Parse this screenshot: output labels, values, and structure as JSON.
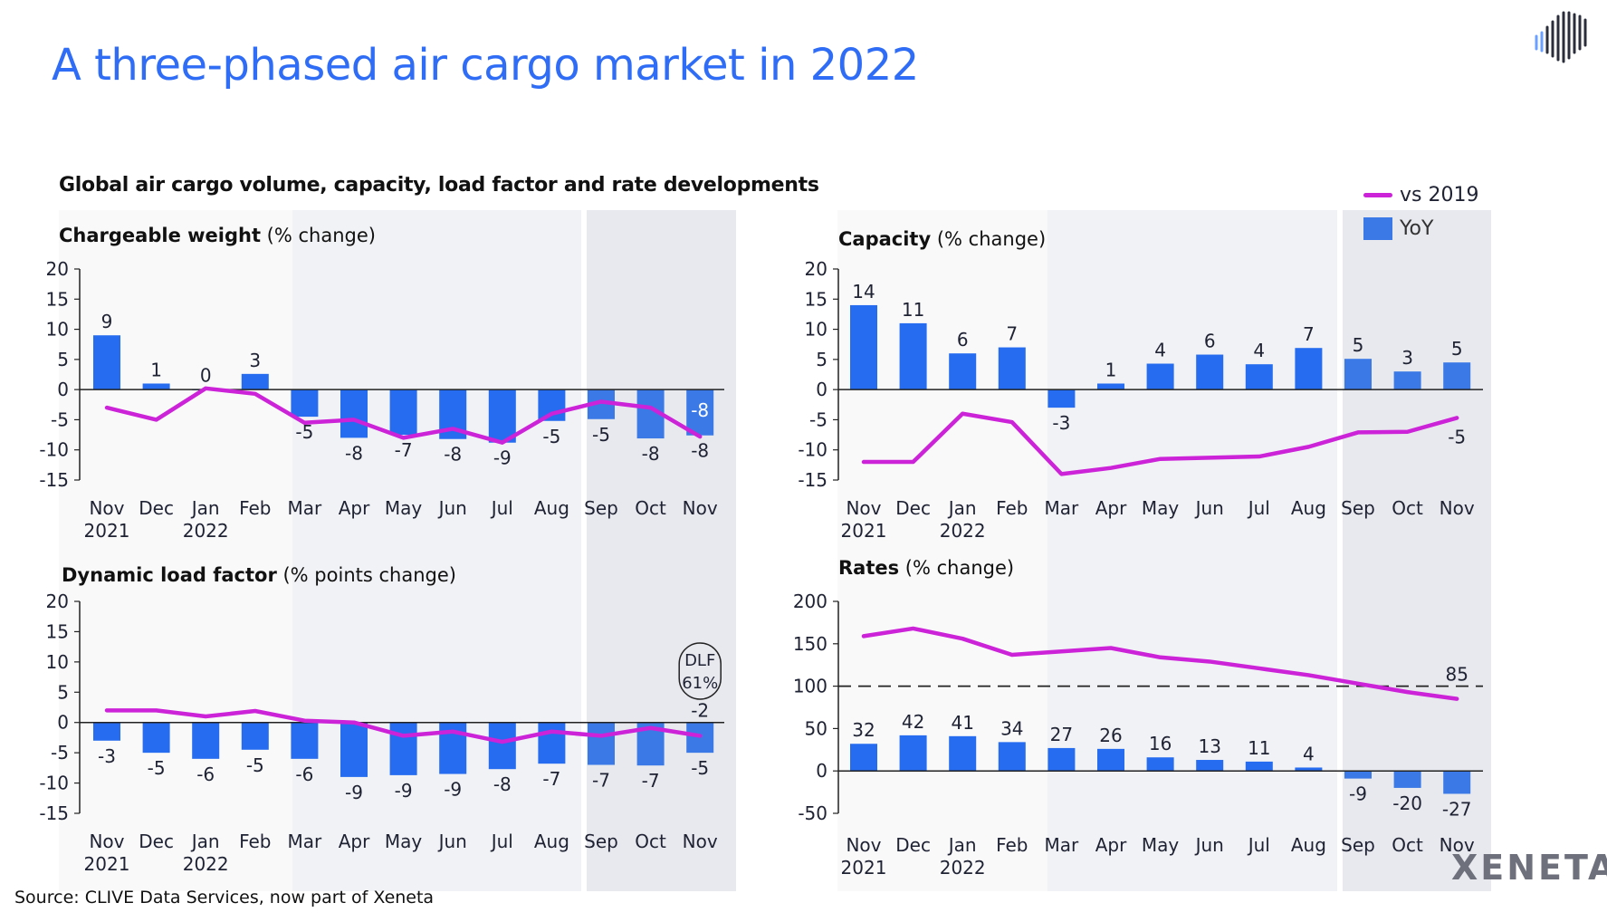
{
  "title": "A three-phased air cargo market in 2022",
  "subtitle": "Global air cargo volume, capacity, load factor and rate developments",
  "source": "Source: CLIVE Data Services, now part of Xeneta",
  "brand": "XENETA",
  "legend": {
    "line_label": "vs 2019",
    "bar_label": "YoY"
  },
  "colors": {
    "bar": "#256cf0",
    "bar_phase3": "#3b7ae6",
    "line": "#cc22d8",
    "title": "#2f6df6",
    "phase1": "#f9f9fa",
    "phase2": "#f1f2f5",
    "phase3": "#e8e9ee"
  },
  "chart_data": [
    {
      "type": "bar+line",
      "title_bold": "Chargeable weight",
      "title_rest": " (% change)",
      "categories": [
        "Nov",
        "Dec",
        "Jan",
        "Feb",
        "Mar",
        "Apr",
        "May",
        "Jun",
        "Jul",
        "Aug",
        "Sep",
        "Oct",
        "Nov"
      ],
      "years": [
        "2021",
        "",
        "2022",
        "",
        "",
        "",
        "",
        "",
        "",
        "",
        "",
        "",
        ""
      ],
      "ylim": [
        -15,
        20
      ],
      "yticks": [
        20,
        15,
        10,
        5,
        0,
        -5,
        -10,
        -15
      ],
      "series": [
        {
          "name": "YoY",
          "type": "bar",
          "values": [
            9,
            1,
            0.1,
            2.6,
            -4.5,
            -8,
            -7.5,
            -8.2,
            -8.8,
            -5.2,
            -4.9,
            -8.1,
            -7.6
          ],
          "labels": [
            "9",
            "1",
            "0",
            "3",
            "-5",
            "-8",
            "-7",
            "-8",
            "-9",
            "-5",
            "-5",
            "-8",
            "-8"
          ]
        },
        {
          "name": "vs 2019",
          "type": "line",
          "values": [
            -3,
            -5,
            0.2,
            -0.7,
            -5.5,
            -5,
            -8,
            -6.5,
            -8.8,
            -4,
            -2,
            -3,
            -7.8
          ],
          "end_label": "-8"
        }
      ]
    },
    {
      "type": "bar+line",
      "title_bold": "Capacity",
      "title_rest": " (% change)",
      "categories": [
        "Nov",
        "Dec",
        "Jan",
        "Feb",
        "Mar",
        "Apr",
        "May",
        "Jun",
        "Jul",
        "Aug",
        "Sep",
        "Oct",
        "Nov"
      ],
      "years": [
        "2021",
        "",
        "2022",
        "",
        "",
        "",
        "",
        "",
        "",
        "",
        "",
        "",
        ""
      ],
      "ylim": [
        -15,
        20
      ],
      "yticks": [
        20,
        15,
        10,
        5,
        0,
        -5,
        -10,
        -15
      ],
      "series": [
        {
          "name": "YoY",
          "type": "bar",
          "values": [
            14,
            11,
            6,
            7,
            -3,
            1,
            4.3,
            5.8,
            4.2,
            6.9,
            5.1,
            3,
            4.5
          ],
          "labels": [
            "14",
            "11",
            "6",
            "7",
            "-3",
            "1",
            "4",
            "6",
            "4",
            "7",
            "5",
            "3",
            "5"
          ]
        },
        {
          "name": "vs 2019",
          "type": "line",
          "values": [
            -12,
            -12,
            -4,
            -5.4,
            -14,
            -13,
            -11.5,
            -11.3,
            -11.1,
            -9.5,
            -7.1,
            -7,
            -4.7
          ],
          "end_label": "-5"
        }
      ]
    },
    {
      "type": "bar+line",
      "title_bold": "Dynamic load factor",
      "title_rest": " (% points change)",
      "categories": [
        "Nov",
        "Dec",
        "Jan",
        "Feb",
        "Mar",
        "Apr",
        "May",
        "Jun",
        "Jul",
        "Aug",
        "Sep",
        "Oct",
        "Nov"
      ],
      "years": [
        "2021",
        "",
        "2022",
        "",
        "",
        "",
        "",
        "",
        "",
        "",
        "",
        "",
        ""
      ],
      "ylim": [
        -15,
        20
      ],
      "yticks": [
        20,
        15,
        10,
        5,
        0,
        -5,
        -10,
        -15
      ],
      "annotation": [
        "DLF",
        "61%"
      ],
      "series": [
        {
          "name": "YoY",
          "type": "bar",
          "values": [
            -3,
            -5,
            -6,
            -4.5,
            -6,
            -9,
            -8.7,
            -8.5,
            -7.7,
            -6.8,
            -7,
            -7.1,
            -5
          ],
          "labels": [
            "-3",
            "-5",
            "-6",
            "-5",
            "-6",
            "-9",
            "-9",
            "-9",
            "-8",
            "-7",
            "-7",
            "-7",
            "-5"
          ]
        },
        {
          "name": "vs 2019",
          "type": "line",
          "values": [
            2,
            2,
            1,
            1.9,
            0.3,
            0,
            -2.2,
            -1.5,
            -3.2,
            -1.5,
            -2.2,
            -0.9,
            -2.2
          ],
          "end_label": "-2"
        }
      ]
    },
    {
      "type": "bar+line",
      "title_bold": "Rates",
      "title_rest": " (% change)",
      "categories": [
        "Nov",
        "Dec",
        "Jan",
        "Feb",
        "Mar",
        "Apr",
        "May",
        "Jun",
        "Jul",
        "Aug",
        "Sep",
        "Oct",
        "Nov"
      ],
      "years": [
        "2021",
        "",
        "2022",
        "",
        "",
        "",
        "",
        "",
        "",
        "",
        "",
        "",
        ""
      ],
      "ylim": [
        -50,
        200
      ],
      "yticks": [
        200,
        150,
        100,
        50,
        0,
        -50
      ],
      "reference_line": 100,
      "series": [
        {
          "name": "YoY",
          "type": "bar",
          "values": [
            32,
            42,
            41,
            34,
            27,
            26,
            16,
            13,
            11,
            4,
            -9,
            -20,
            -27
          ],
          "labels": [
            "32",
            "42",
            "41",
            "34",
            "27",
            "26",
            "16",
            "13",
            "11",
            "4",
            "-9",
            "-20",
            "-27"
          ]
        },
        {
          "name": "vs 2019",
          "type": "line",
          "values": [
            159,
            168,
            156,
            137,
            141,
            145,
            134,
            129,
            121,
            113,
            103,
            93,
            85
          ],
          "end_label": "85"
        }
      ]
    }
  ]
}
